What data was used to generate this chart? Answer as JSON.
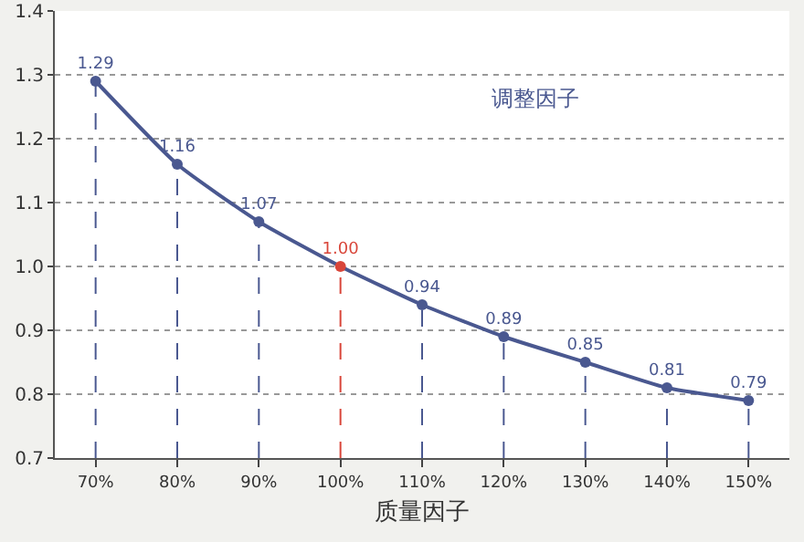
{
  "chart_data": {
    "type": "line",
    "xlabel": "质量因子",
    "categories": [
      "70%",
      "80%",
      "90%",
      "100%",
      "110%",
      "120%",
      "130%",
      "140%",
      "150%"
    ],
    "series": [
      {
        "name": "调整因子",
        "color": "#4a5890",
        "colors": [
          "#4a5890",
          "#4a5890",
          "#4a5890",
          "#d9463a",
          "#4a5890",
          "#4a5890",
          "#4a5890",
          "#4a5890",
          "#4a5890"
        ],
        "values": [
          1.29,
          1.16,
          1.07,
          1.0,
          0.94,
          0.89,
          0.85,
          0.81,
          0.79
        ],
        "value_labels": [
          "1.29",
          "1.16",
          "1.07",
          "1.00",
          "0.94",
          "0.89",
          "0.85",
          "0.81",
          "0.79"
        ]
      }
    ],
    "ylim": [
      0.7,
      1.4
    ],
    "yticks": [
      {
        "value": 0.7,
        "label": "0.7"
      },
      {
        "value": 0.8,
        "label": "0.8"
      },
      {
        "value": 0.9,
        "label": "0.9"
      },
      {
        "value": 1.0,
        "label": "1.0"
      },
      {
        "value": 1.1,
        "label": "1.1"
      },
      {
        "value": 1.2,
        "label": "1.2"
      },
      {
        "value": 1.3,
        "label": "1.3"
      },
      {
        "value": 1.4,
        "label": "1.4"
      }
    ],
    "ref_lines": [
      {
        "axis": "x",
        "value": "70%",
        "color": "#4a5890",
        "line_style": "dashed"
      },
      {
        "axis": "x",
        "value": "80%",
        "color": "#4a5890",
        "line_style": "dashed"
      },
      {
        "axis": "x",
        "value": "90%",
        "color": "#4a5890",
        "line_style": "dashed"
      },
      {
        "axis": "x",
        "value": "100%",
        "color": "#d9463a",
        "line_style": "dashed"
      },
      {
        "axis": "x",
        "value": "110%",
        "color": "#4a5890",
        "line_style": "dashed"
      },
      {
        "axis": "x",
        "value": "120%",
        "color": "#4a5890",
        "line_style": "dashed"
      },
      {
        "axis": "x",
        "value": "130%",
        "color": "#4a5890",
        "line_style": "dashed"
      },
      {
        "axis": "x",
        "value": "140%",
        "color": "#4a5890",
        "line_style": "dashed"
      },
      {
        "axis": "x",
        "value": "150%",
        "color": "#4a5890",
        "line_style": "dashed"
      }
    ],
    "grid": "y",
    "marker": "circle",
    "line_style": "solid"
  }
}
